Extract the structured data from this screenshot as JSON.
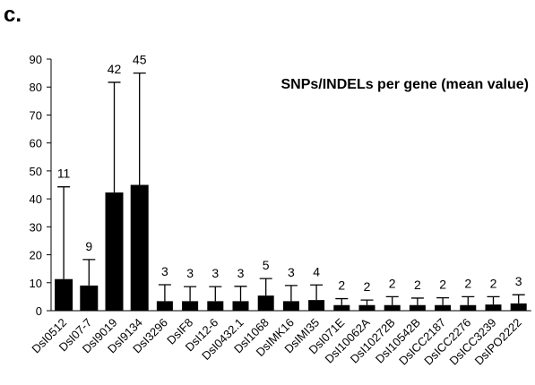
{
  "chart_data": {
    "type": "bar",
    "panel_label": "c.",
    "title": "SNPs/INDELs per gene (mean value)",
    "categories": [
      "DsI0512",
      "DsI07-7",
      "DsI9019",
      "DsI9134",
      "DsI3296",
      "DsIF8",
      "DsI12-6",
      "DsI0432.1",
      "DsI1068",
      "DsIMK16",
      "DsIMI35",
      "DsI071E",
      "DsI10062A",
      "DsI10272B",
      "DsI10542B",
      "DsICC2187",
      "DsICC2276",
      "DsICC3239",
      "DsIPO2222"
    ],
    "values": [
      11.3,
      9,
      42.3,
      45,
      3.4,
      3.4,
      3.4,
      3.4,
      5.4,
      3.4,
      3.8,
      2,
      2,
      2,
      2,
      2,
      2,
      2.2,
      2.6
    ],
    "value_labels": [
      "11",
      "9",
      "42",
      "45",
      "3",
      "3",
      "3",
      "3",
      "5",
      "3",
      "4",
      "2",
      "2",
      "2",
      "2",
      "2",
      "2",
      "2",
      "3"
    ],
    "errors": [
      33,
      9.3,
      39.4,
      40,
      5.9,
      5.2,
      5.2,
      5.3,
      6.1,
      5.6,
      5.4,
      2.3,
      1.8,
      3,
      2.5,
      2.6,
      3,
      2.8,
      3.1
    ],
    "color": "#000000",
    "ylim": [
      0,
      90
    ],
    "yticks": [
      0,
      10,
      20,
      30,
      40,
      50,
      60,
      70,
      80,
      90
    ]
  }
}
